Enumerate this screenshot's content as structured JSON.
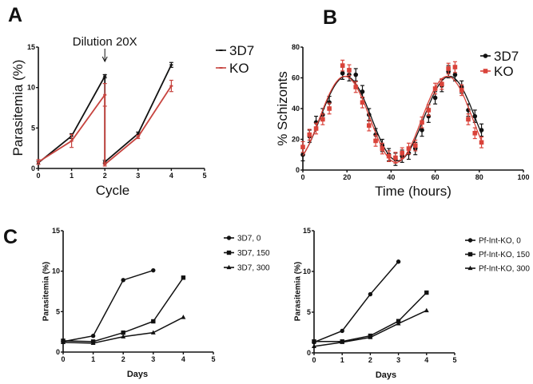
{
  "panels": {
    "a": "A",
    "b": "B",
    "c": "C"
  },
  "chart_data": [
    {
      "id": "A",
      "type": "line",
      "xlabel": "Cycle",
      "ylabel": "Parasitemia (%)",
      "xlim": [
        0,
        5
      ],
      "ylim": [
        0,
        15
      ],
      "xticks": [
        "0",
        "1",
        "2",
        "3",
        "4",
        "5"
      ],
      "yticks": [
        "0",
        "5",
        "10",
        "15"
      ],
      "annotation": "Dilution 20X",
      "annotation_x": 2,
      "legend_position": "top-right",
      "series": [
        {
          "name": "3D7",
          "color": "#111111",
          "x": [
            0,
            1,
            2,
            2,
            3,
            4
          ],
          "y": [
            0.7,
            4.0,
            11.4,
            0.8,
            4.3,
            12.8
          ],
          "err": [
            0.2,
            0.3,
            0.2,
            0.2,
            0.2,
            0.3
          ]
        },
        {
          "name": "KO",
          "color": "#c7443f",
          "x": [
            0,
            1,
            2,
            2,
            3,
            4
          ],
          "y": [
            0.8,
            3.4,
            9.1,
            0.5,
            3.9,
            10.2
          ],
          "err": [
            0.3,
            0.8,
            1.4,
            0.2,
            0.2,
            0.7
          ]
        }
      ]
    },
    {
      "id": "B",
      "type": "scatter",
      "xlabel": "Time (hours)",
      "ylabel": "% Schizonts",
      "xlim": [
        0,
        100
      ],
      "ylim": [
        0,
        80
      ],
      "xticks": [
        "0",
        "20",
        "40",
        "60",
        "80",
        "100"
      ],
      "yticks": [
        "0",
        "20",
        "40",
        "60",
        "80"
      ],
      "legend_position": "top-right",
      "series": [
        {
          "name": "3D7",
          "color": "#111111",
          "marker": "circle",
          "x": [
            0,
            3,
            6,
            9,
            12,
            18,
            21,
            24,
            27,
            30,
            33,
            36,
            39,
            42,
            45,
            48,
            51,
            54,
            57,
            60,
            63,
            66,
            69,
            72,
            75,
            78,
            81
          ],
          "y": [
            10,
            22,
            31,
            36,
            44,
            63,
            62,
            62,
            51,
            36,
            23,
            16,
            10,
            7,
            9,
            11,
            14,
            26,
            35,
            47,
            55,
            64,
            62,
            54,
            39,
            35,
            26
          ],
          "err": 4,
          "fit": {
            "mean": 33.5,
            "amplitude": 27.5,
            "peak_time": 19.5,
            "period": 47
          }
        },
        {
          "name": "KO",
          "color": "#d9433a",
          "marker": "square",
          "x": [
            0,
            3,
            6,
            9,
            12,
            18,
            21,
            24,
            27,
            30,
            33,
            36,
            39,
            42,
            45,
            48,
            51,
            54,
            57,
            60,
            63,
            66,
            69,
            72,
            75,
            78,
            81
          ],
          "y": [
            15,
            23,
            27,
            33,
            40,
            68,
            65,
            54,
            44,
            29,
            19,
            14,
            9,
            8,
            11,
            14,
            16,
            31,
            39,
            53,
            56,
            66,
            67,
            52,
            33,
            24,
            18
          ],
          "err": 3.5,
          "fit": {
            "mean": 33,
            "amplitude": 28,
            "peak_time": 19,
            "period": 46.5
          }
        }
      ]
    },
    {
      "id": "C-left",
      "type": "line",
      "xlabel": "Days",
      "ylabel": "Parasitemia (%)",
      "xlim": [
        0,
        5
      ],
      "ylim": [
        0,
        15
      ],
      "xticks": [
        "0",
        "1",
        "2",
        "3",
        "4",
        "5"
      ],
      "yticks": [
        "0",
        "5",
        "10",
        "15"
      ],
      "legend_position": "right",
      "series": [
        {
          "name": "3D7, 0",
          "marker": "circle",
          "x": [
            0,
            1,
            2,
            3
          ],
          "y": [
            1.3,
            2.0,
            8.9,
            10.1
          ]
        },
        {
          "name": "3D7, 150",
          "marker": "square",
          "x": [
            0,
            1,
            2,
            3,
            4
          ],
          "y": [
            1.4,
            1.3,
            2.4,
            3.8,
            9.2
          ]
        },
        {
          "name": "3D7, 300",
          "marker": "triangle",
          "x": [
            0,
            1,
            2,
            3,
            4
          ],
          "y": [
            1.2,
            1.1,
            1.9,
            2.4,
            4.3
          ]
        }
      ]
    },
    {
      "id": "C-right",
      "type": "line",
      "xlabel": "Days",
      "ylabel": "Parasitemia (%)",
      "xlim": [
        0,
        5
      ],
      "ylim": [
        0,
        15
      ],
      "xticks": [
        "0",
        "1",
        "2",
        "3",
        "4",
        "5"
      ],
      "yticks": [
        "0",
        "5",
        "10",
        "15"
      ],
      "legend_position": "right",
      "series": [
        {
          "name": "Pf-Int-KO, 0",
          "marker": "circle",
          "x": [
            0,
            1,
            2,
            3
          ],
          "y": [
            1.3,
            2.7,
            7.2,
            11.2
          ]
        },
        {
          "name": "Pf-Int-KO, 150",
          "marker": "square",
          "x": [
            0,
            1,
            2,
            3,
            4
          ],
          "y": [
            1.4,
            1.4,
            2.1,
            3.9,
            7.4
          ]
        },
        {
          "name": "Pf-Int-KO, 300",
          "marker": "triangle",
          "x": [
            0,
            1,
            2,
            3,
            4
          ],
          "y": [
            0.8,
            1.3,
            1.9,
            3.6,
            5.2
          ]
        }
      ]
    }
  ]
}
